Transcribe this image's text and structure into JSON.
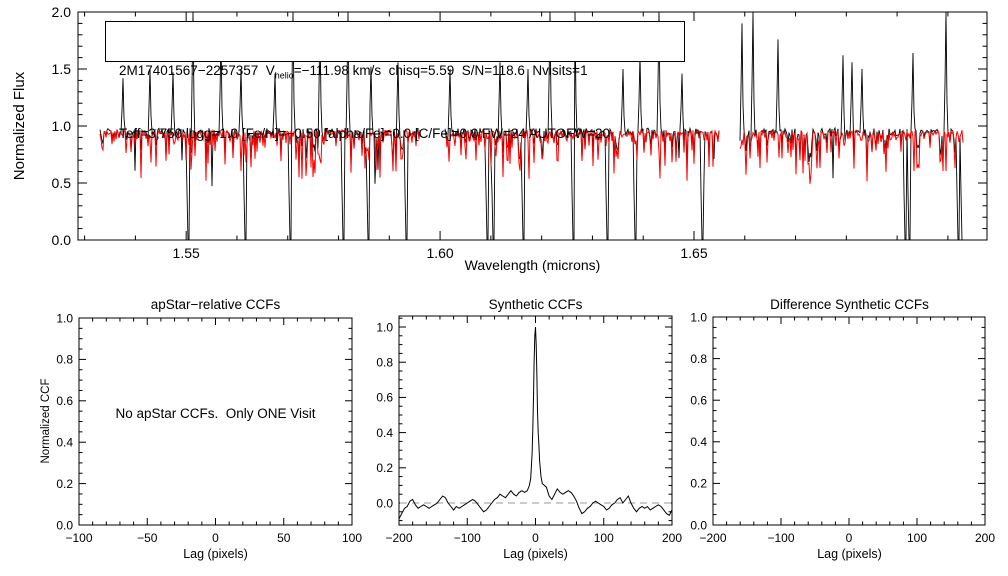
{
  "figure": {
    "background": "#ffffff",
    "axis_color": "#000000",
    "observed_color": "#000000",
    "model_color": "#ff0000",
    "annotation": {
      "line1_before_sub": "2M17401567−2257357  V",
      "line1_sub": "helio",
      "line1_after_sub": "=−111.98 km/s  chisq=5.59  S/N=118.6  Nvisits=1",
      "line2": "Teff=3,750 logg=1.0 [Fe/H]=−0.50 [alpha/Fe]=0.0 [C/Fe]=0.0 FW=24 AUTOFW=20"
    }
  },
  "chart_data": [
    {
      "id": "apvisit-spectrum",
      "type": "line",
      "xlabel": "Wavelength (microns)",
      "ylabel": "Normalized Flux",
      "xlim": [
        1.5287,
        1.7077
      ],
      "ylim": [
        0.0,
        2.0
      ],
      "xticks": [
        1.55,
        1.6,
        1.65
      ],
      "xtick_labels": [
        "1.55",
        "1.60",
        "1.65"
      ],
      "xminor_step": 0.01,
      "yticks": [
        0.0,
        0.5,
        1.0,
        1.5,
        2.0
      ],
      "ytick_labels": [
        "0.0",
        "0.5",
        "1.0",
        "1.5",
        "2.0"
      ],
      "yminor_step": 0.1,
      "grid": false,
      "series": [
        {
          "name": "observed spectrum",
          "color": "#000000",
          "continuum": 0.95,
          "segments": [
            [
              1.533,
              1.596
            ],
            [
              1.601,
              1.655
            ],
            [
              1.659,
              1.703
            ]
          ],
          "emission_spikes": [
            [
              1.5376,
              1.42
            ],
            [
              1.5429,
              1.5
            ],
            [
              1.5474,
              1.47
            ],
            [
              1.5513,
              2.0
            ],
            [
              1.5569,
              1.78
            ],
            [
              1.5608,
              1.5
            ],
            [
              1.5675,
              1.46
            ],
            [
              1.571,
              2.0
            ],
            [
              1.5763,
              1.92
            ],
            [
              1.5818,
              2.0
            ],
            [
              1.5864,
              1.52
            ],
            [
              1.5917,
              1.56
            ],
            [
              1.6019,
              1.5
            ],
            [
              1.6118,
              1.56
            ],
            [
              1.6173,
              1.5
            ],
            [
              1.6216,
              2.0
            ],
            [
              1.6265,
              2.0
            ],
            [
              1.6328,
              2.0
            ],
            [
              1.636,
              1.5
            ],
            [
              1.6393,
              1.62
            ],
            [
              1.6431,
              2.0
            ],
            [
              1.6476,
              1.46
            ],
            [
              1.6594,
              1.9
            ],
            [
              1.6616,
              2.0
            ],
            [
              1.6665,
              1.76
            ],
            [
              1.6793,
              1.62
            ],
            [
              1.6811,
              1.56
            ],
            [
              1.683,
              1.5
            ],
            [
              1.6931,
              1.64
            ],
            [
              1.6996,
              2.0
            ]
          ],
          "deep_absorption_lines": [
            1.5504,
            1.5616,
            1.5704,
            1.5808,
            1.5858,
            1.5932,
            1.6092,
            1.6104,
            1.6163,
            1.6261,
            1.6328,
            1.6384,
            1.6515,
            1.6915,
            1.6923,
            1.702,
            1.7027
          ]
        },
        {
          "name": "best-fit synthetic spectrum",
          "color": "#ff0000",
          "continuum": 0.95,
          "segments": [
            [
              1.533,
              1.596
            ],
            [
              1.601,
              1.655
            ],
            [
              1.659,
              1.703
            ]
          ],
          "absorption_depth_range": [
            0.05,
            0.5
          ]
        }
      ]
    },
    {
      "id": "apstar-relative-ccfs",
      "type": "line",
      "title": "apStar−relative CCFs",
      "xlabel": "Lag (pixels)",
      "ylabel": "Normalized CCF",
      "xlim": [
        -100,
        100
      ],
      "ylim": [
        0.0,
        1.0
      ],
      "xticks": [
        -100,
        -50,
        0,
        50,
        100
      ],
      "xtick_labels": [
        "−100",
        "−50",
        "0",
        "50",
        "100"
      ],
      "xminor_step": 10,
      "yticks": [
        0.0,
        0.2,
        0.4,
        0.6,
        0.8,
        1.0
      ],
      "ytick_labels": [
        "0.0",
        "0.2",
        "0.4",
        "0.6",
        "0.8",
        "1.0"
      ],
      "yminor_step": 0.05,
      "message": "No apStar CCFs.  Only ONE Visit",
      "points": []
    },
    {
      "id": "synthetic-ccfs",
      "type": "line",
      "title": "Synthetic CCFs",
      "xlabel": "Lag (pixels)",
      "xlim": [
        -200,
        200
      ],
      "ylim": [
        -0.125,
        1.0625
      ],
      "xticks": [
        -200,
        -100,
        0,
        100,
        200
      ],
      "xtick_labels": [
        "−200",
        "−100",
        "0",
        "100",
        "200"
      ],
      "xminor_step": 20,
      "yticks": [
        0.0,
        0.2,
        0.4,
        0.6,
        0.8,
        1.0
      ],
      "ytick_labels": [
        "0.0",
        "0.2",
        "0.4",
        "0.6",
        "0.8",
        "1.0"
      ],
      "yminor_step": 0.05,
      "zero_line": {
        "y": 0,
        "style": "dashed",
        "color": "#999999"
      },
      "peak": {
        "lag": 0,
        "height": 1.0
      },
      "points": [
        [
          -200,
          -0.09
        ],
        [
          -196,
          -0.06
        ],
        [
          -192,
          -0.03
        ],
        [
          -188,
          -0.02
        ],
        [
          -184,
          0.01
        ],
        [
          -180,
          0.02
        ],
        [
          -176,
          -0.01
        ],
        [
          -172,
          -0.03
        ],
        [
          -168,
          -0.02
        ],
        [
          -164,
          -0.01
        ],
        [
          -160,
          -0.02
        ],
        [
          -156,
          -0.03
        ],
        [
          -152,
          -0.02
        ],
        [
          -148,
          -0.01
        ],
        [
          -144,
          0.0
        ],
        [
          -140,
          0.02
        ],
        [
          -136,
          0.04
        ],
        [
          -132,
          0.03
        ],
        [
          -128,
          0.0
        ],
        [
          -124,
          -0.02
        ],
        [
          -120,
          -0.04
        ],
        [
          -116,
          -0.02
        ],
        [
          -112,
          -0.03
        ],
        [
          -108,
          -0.02
        ],
        [
          -104,
          -0.01
        ],
        [
          -100,
          0.0
        ],
        [
          -96,
          0.01
        ],
        [
          -92,
          0.02
        ],
        [
          -88,
          0.01
        ],
        [
          -84,
          -0.01
        ],
        [
          -80,
          -0.03
        ],
        [
          -76,
          -0.05
        ],
        [
          -72,
          -0.04
        ],
        [
          -68,
          -0.02
        ],
        [
          -64,
          0.0
        ],
        [
          -60,
          0.02
        ],
        [
          -56,
          0.03
        ],
        [
          -52,
          0.05
        ],
        [
          -48,
          0.04
        ],
        [
          -44,
          0.03
        ],
        [
          -40,
          0.05
        ],
        [
          -36,
          0.07
        ],
        [
          -32,
          0.05
        ],
        [
          -28,
          0.04
        ],
        [
          -24,
          0.06
        ],
        [
          -20,
          0.07
        ],
        [
          -16,
          0.06
        ],
        [
          -12,
          0.07
        ],
        [
          -9,
          0.1
        ],
        [
          -7,
          0.14
        ],
        [
          -5,
          0.28
        ],
        [
          -4,
          0.42
        ],
        [
          -3,
          0.6
        ],
        [
          -2,
          0.8
        ],
        [
          -1,
          0.95
        ],
        [
          0,
          1.0
        ],
        [
          1,
          0.9
        ],
        [
          2,
          0.72
        ],
        [
          3,
          0.52
        ],
        [
          4,
          0.4
        ],
        [
          5,
          0.33
        ],
        [
          6,
          0.24
        ],
        [
          8,
          0.15
        ],
        [
          10,
          0.11
        ],
        [
          13,
          0.1
        ],
        [
          16,
          0.09
        ],
        [
          20,
          0.04
        ],
        [
          24,
          0.02
        ],
        [
          28,
          0.05
        ],
        [
          32,
          0.08
        ],
        [
          36,
          0.06
        ],
        [
          40,
          0.05
        ],
        [
          44,
          0.06
        ],
        [
          48,
          0.07
        ],
        [
          52,
          0.06
        ],
        [
          56,
          0.04
        ],
        [
          60,
          0.01
        ],
        [
          64,
          -0.03
        ],
        [
          68,
          -0.06
        ],
        [
          72,
          -0.05
        ],
        [
          76,
          -0.03
        ],
        [
          80,
          -0.02
        ],
        [
          84,
          0.0
        ],
        [
          88,
          0.01
        ],
        [
          92,
          0.0
        ],
        [
          96,
          -0.01
        ],
        [
          100,
          -0.02
        ],
        [
          104,
          -0.04
        ],
        [
          108,
          -0.03
        ],
        [
          112,
          -0.01
        ],
        [
          116,
          0.0
        ],
        [
          120,
          0.02
        ],
        [
          124,
          0.03
        ],
        [
          128,
          0.0
        ],
        [
          132,
          0.02
        ],
        [
          136,
          0.04
        ],
        [
          140,
          0.0
        ],
        [
          144,
          -0.03
        ],
        [
          148,
          -0.05
        ],
        [
          152,
          -0.03
        ],
        [
          156,
          -0.02
        ],
        [
          160,
          -0.03
        ],
        [
          164,
          -0.02
        ],
        [
          168,
          -0.04
        ],
        [
          172,
          -0.03
        ],
        [
          176,
          -0.02
        ],
        [
          180,
          -0.01
        ],
        [
          184,
          -0.02
        ],
        [
          188,
          -0.04
        ],
        [
          192,
          -0.06
        ],
        [
          196,
          -0.07
        ],
        [
          200,
          -0.04
        ]
      ]
    },
    {
      "id": "difference-synthetic-ccfs",
      "type": "line",
      "title": "Difference Synthetic CCFs",
      "xlabel": "Lag (pixels)",
      "xlim": [
        -200,
        200
      ],
      "ylim": [
        0.0,
        1.0
      ],
      "xticks": [
        -200,
        -100,
        0,
        100,
        200
      ],
      "xtick_labels": [
        "−200",
        "−100",
        "0",
        "100",
        "200"
      ],
      "xminor_step": 20,
      "yticks": [
        0.0,
        0.2,
        0.4,
        0.6,
        0.8,
        1.0
      ],
      "ytick_labels": [
        "0.0",
        "0.2",
        "0.4",
        "0.6",
        "0.8",
        "1.0"
      ],
      "yminor_step": 0.05,
      "points": []
    }
  ]
}
